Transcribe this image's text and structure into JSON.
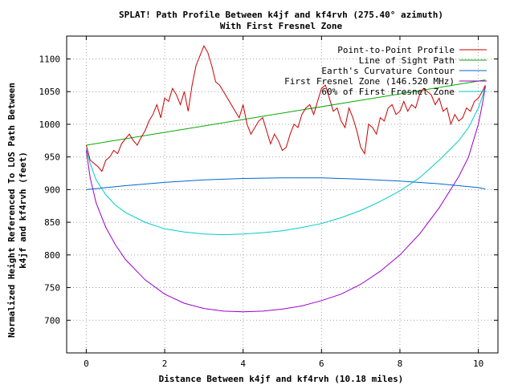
{
  "chart_data": {
    "type": "line",
    "title": "SPLAT! Path Profile Between k4jf and kf4rvh (275.40° azimuth)",
    "subtitle": "With First Fresnel Zone",
    "xlabel": "Distance Between k4jf and kf4rvh (10.18 miles)",
    "ylabel_line1": "Normalized Height Referenced To LOS Path Between",
    "ylabel_line2": "k4jf and kf4rvh (feet)",
    "xlim": [
      -0.5,
      10.5
    ],
    "ylim": [
      650,
      1135
    ],
    "xticks": [
      0,
      2,
      4,
      6,
      8,
      10
    ],
    "yticks": [
      700,
      750,
      800,
      850,
      900,
      950,
      1000,
      1050,
      1100
    ],
    "grid": true,
    "legend_position": "top-right",
    "series": [
      {
        "name": "Point-to-Point Profile",
        "color": "#cc0000",
        "x": [
          0,
          0.1,
          0.2,
          0.3,
          0.4,
          0.5,
          0.6,
          0.7,
          0.8,
          0.9,
          1.0,
          1.1,
          1.2,
          1.3,
          1.4,
          1.5,
          1.6,
          1.7,
          1.8,
          1.9,
          2.0,
          2.1,
          2.2,
          2.3,
          2.4,
          2.5,
          2.6,
          2.7,
          2.8,
          2.9,
          3.0,
          3.1,
          3.2,
          3.3,
          3.4,
          3.5,
          3.6,
          3.7,
          3.8,
          3.9,
          4.0,
          4.1,
          4.2,
          4.3,
          4.4,
          4.5,
          4.6,
          4.7,
          4.8,
          4.9,
          5.0,
          5.1,
          5.2,
          5.3,
          5.4,
          5.5,
          5.6,
          5.7,
          5.8,
          5.9,
          6.0,
          6.1,
          6.2,
          6.3,
          6.4,
          6.5,
          6.6,
          6.7,
          6.8,
          6.9,
          7.0,
          7.1,
          7.2,
          7.3,
          7.4,
          7.5,
          7.6,
          7.7,
          7.8,
          7.9,
          8.0,
          8.1,
          8.2,
          8.3,
          8.4,
          8.5,
          8.6,
          8.7,
          8.8,
          8.9,
          9.0,
          9.1,
          9.2,
          9.3,
          9.4,
          9.5,
          9.6,
          9.7,
          9.8,
          9.9,
          10.0,
          10.1,
          10.18
        ],
        "values": [
          968,
          945,
          940,
          935,
          928,
          945,
          950,
          960,
          955,
          970,
          978,
          985,
          975,
          968,
          980,
          990,
          1005,
          1015,
          1030,
          1010,
          1040,
          1035,
          1055,
          1045,
          1030,
          1050,
          1020,
          1060,
          1090,
          1105,
          1120,
          1110,
          1090,
          1065,
          1060,
          1050,
          1040,
          1030,
          1020,
          1010,
          1030,
          1000,
          985,
          995,
          1005,
          1010,
          990,
          970,
          985,
          975,
          960,
          965,
          985,
          1000,
          995,
          1015,
          1025,
          1030,
          1015,
          1035,
          1055,
          1060,
          1040,
          1020,
          1025,
          1005,
          995,
          1025,
          1010,
          990,
          965,
          955,
          1000,
          995,
          985,
          1010,
          1005,
          1025,
          1030,
          1015,
          1020,
          1035,
          1020,
          1030,
          1025,
          1045,
          1055,
          1050,
          1045,
          1030,
          1040,
          1020,
          1025,
          1000,
          1015,
          1005,
          1010,
          1025,
          1020,
          1035,
          1040,
          1050,
          1060
        ]
      },
      {
        "name": "Line of Sight Path",
        "color": "#00aa00",
        "x": [
          0,
          10.18
        ],
        "values": [
          968,
          1068
        ]
      },
      {
        "name": "Earth's Curvature Contour",
        "color": "#0066cc",
        "x": [
          0,
          1,
          2,
          3,
          4,
          5,
          6,
          7,
          8,
          9,
          10,
          10.18
        ],
        "values": [
          900,
          906,
          911,
          915,
          917,
          918,
          918,
          916,
          913,
          909,
          903,
          901
        ]
      },
      {
        "name": "First Fresnel Zone (146.520 MHz)",
        "color": "#9900cc",
        "x": [
          0,
          0.1,
          0.25,
          0.5,
          0.75,
          1,
          1.5,
          2,
          2.5,
          3,
          3.5,
          4,
          4.5,
          5,
          5.5,
          6,
          6.5,
          7,
          7.5,
          8,
          8.5,
          9,
          9.5,
          9.75,
          10,
          10.1,
          10.18
        ],
        "values": [
          960,
          918,
          880,
          842,
          815,
          793,
          762,
          740,
          726,
          718,
          714,
          713,
          714,
          717,
          722,
          730,
          740,
          755,
          775,
          800,
          832,
          872,
          920,
          950,
          1000,
          1030,
          1058
        ]
      },
      {
        "name": "60% of First Fresnel Zone",
        "color": "#00cccc",
        "x": [
          0,
          0.1,
          0.25,
          0.5,
          0.75,
          1,
          1.5,
          2,
          2.5,
          3,
          3.5,
          4,
          4.5,
          5,
          5.5,
          6,
          6.5,
          7,
          7.5,
          8,
          8.5,
          9,
          9.5,
          9.75,
          10,
          10.1,
          10.18
        ],
        "values": [
          962,
          940,
          915,
          892,
          876,
          865,
          850,
          840,
          835,
          832,
          831,
          832,
          834,
          837,
          842,
          848,
          857,
          868,
          882,
          898,
          918,
          945,
          975,
          995,
          1025,
          1042,
          1058
        ]
      }
    ]
  }
}
